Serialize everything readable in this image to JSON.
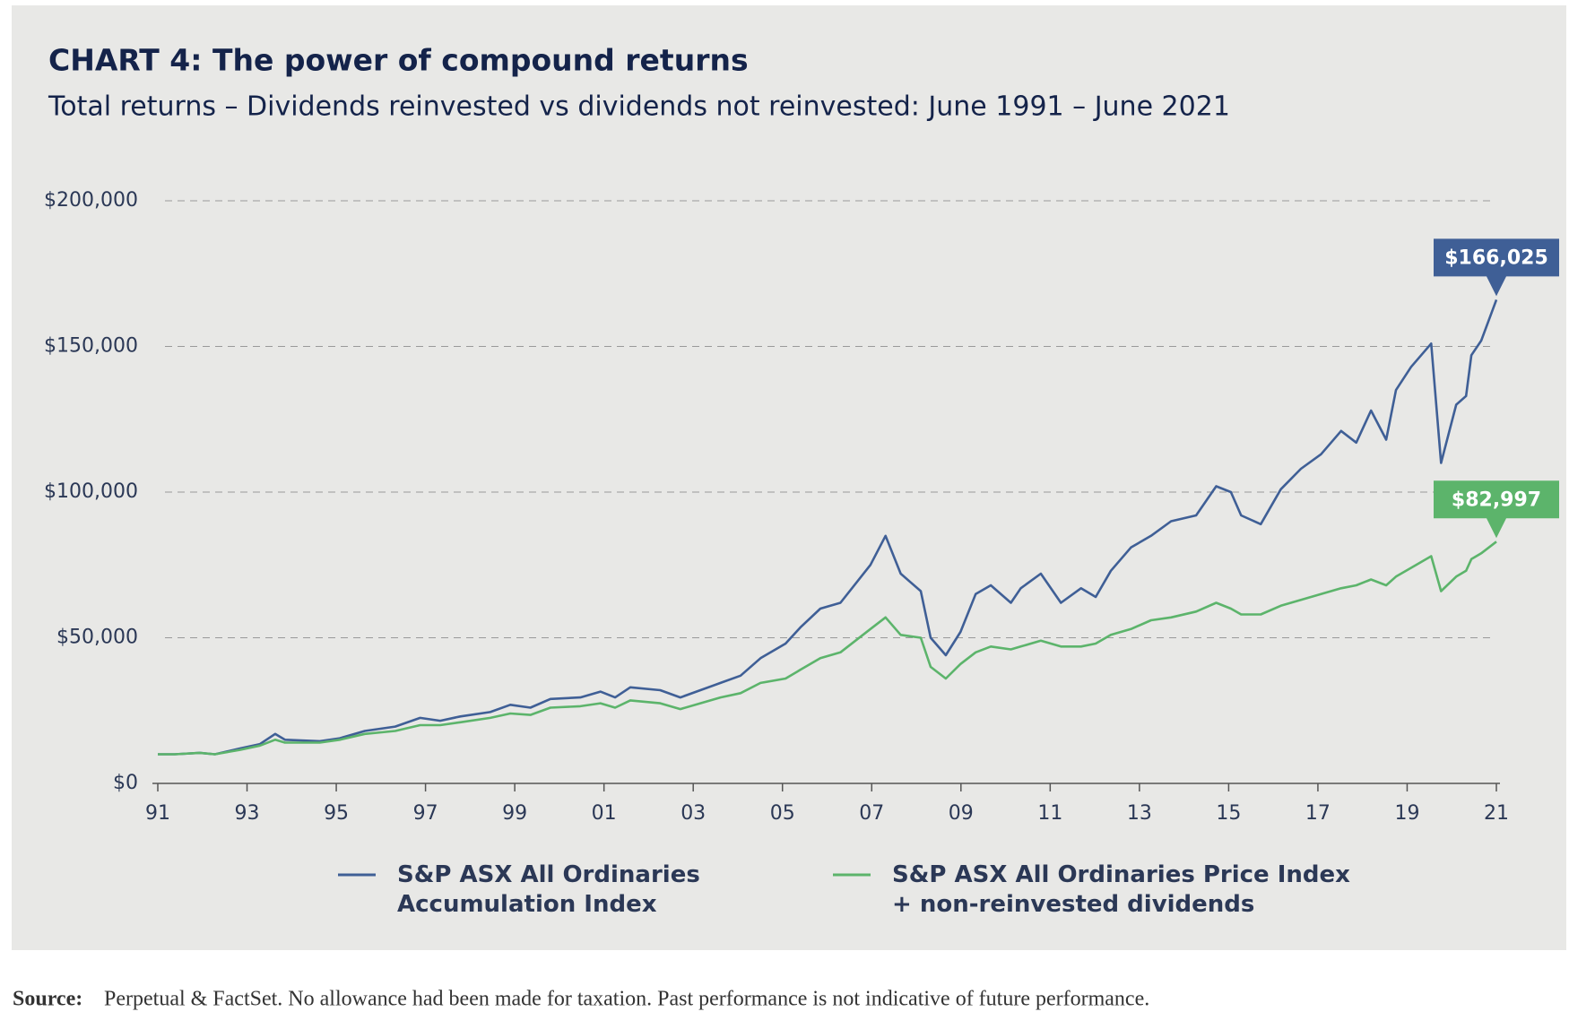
{
  "chart_data": {
    "type": "line",
    "title": "CHART 4:  The power of compound returns",
    "subtitle": "Total returns – Dividends reinvested vs dividends not reinvested: June 1991 – June 2021",
    "x": [
      1991.0,
      1991.38,
      1991.94,
      1992.28,
      1992.84,
      1993.29,
      1993.63,
      1993.85,
      1994.63,
      1995.08,
      1995.64,
      1996.32,
      1996.88,
      1997.33,
      1997.78,
      1998.45,
      1998.9,
      1999.35,
      1999.8,
      2000.47,
      2000.92,
      2001.25,
      2001.59,
      2002.26,
      2002.71,
      2003.16,
      2003.61,
      2004.06,
      2004.51,
      2005.07,
      2005.4,
      2005.85,
      2006.3,
      2006.97,
      2007.31,
      2007.65,
      2008.1,
      2008.32,
      2008.66,
      2008.99,
      2009.33,
      2009.67,
      2010.12,
      2010.34,
      2010.79,
      2011.24,
      2011.69,
      2012.02,
      2012.36,
      2012.81,
      2013.26,
      2013.71,
      2014.27,
      2014.72,
      2015.05,
      2015.28,
      2015.72,
      2016.17,
      2016.62,
      2017.07,
      2017.52,
      2017.86,
      2018.19,
      2018.53,
      2018.75,
      2019.09,
      2019.54,
      2019.76,
      2020.1,
      2020.32,
      2020.44,
      2020.66,
      2021.0
    ],
    "series": [
      {
        "name": "S&P ASX All Ordinaries\nAccumulation Index",
        "color": "#3f5f96",
        "values": [
          10000,
          10000,
          10500,
          10000,
          12000,
          13500,
          17000,
          15000,
          14500,
          15500,
          18000,
          19500,
          22500,
          21500,
          23000,
          24500,
          27000,
          26000,
          29000,
          29500,
          31500,
          29500,
          33000,
          32000,
          29500,
          32000,
          34500,
          37000,
          43000,
          48000,
          53500,
          60000,
          62000,
          75000,
          85000,
          72000,
          66000,
          50000,
          44000,
          52000,
          65000,
          68000,
          62000,
          67000,
          72000,
          62000,
          67000,
          64000,
          73000,
          81000,
          85000,
          90000,
          92000,
          102000,
          100000,
          92000,
          89000,
          101000,
          108000,
          113000,
          121000,
          117000,
          128000,
          118000,
          135000,
          143000,
          151000,
          110000,
          130000,
          133000,
          147000,
          152000,
          166025
        ]
      },
      {
        "name": "S&P ASX All Ordinaries Price Index\n+ non-reinvested dividends",
        "color": "#5cb46b",
        "values": [
          10000,
          10000,
          10500,
          10000,
          11500,
          13000,
          15000,
          14000,
          14000,
          15000,
          17000,
          18000,
          20000,
          20000,
          21000,
          22500,
          24000,
          23500,
          26000,
          26500,
          27500,
          26000,
          28500,
          27500,
          25500,
          27500,
          29500,
          31000,
          34500,
          36000,
          39000,
          43000,
          45000,
          53000,
          57000,
          51000,
          50000,
          40000,
          36000,
          41000,
          45000,
          47000,
          46000,
          47000,
          49000,
          47000,
          47000,
          48000,
          51000,
          53000,
          56000,
          57000,
          59000,
          62000,
          60000,
          58000,
          58000,
          61000,
          63000,
          65000,
          67000,
          68000,
          70000,
          68000,
          71000,
          74000,
          78000,
          66000,
          71000,
          73000,
          77000,
          79000,
          82997
        ]
      }
    ],
    "annotations": [
      {
        "label": "$166,025",
        "x": 2021,
        "value": 166025,
        "color": "#3f5f96"
      },
      {
        "label": "$82,997",
        "x": 2021,
        "value": 82997,
        "color": "#5cb46b"
      }
    ],
    "xlim": [
      1991,
      2021
    ],
    "xticks": [
      {
        "value": 1991,
        "label": "91"
      },
      {
        "value": 1993,
        "label": "93"
      },
      {
        "value": 1995,
        "label": "95"
      },
      {
        "value": 1997,
        "label": "97"
      },
      {
        "value": 1999,
        "label": "99"
      },
      {
        "value": 2001,
        "label": "01"
      },
      {
        "value": 2003,
        "label": "03"
      },
      {
        "value": 2005,
        "label": "05"
      },
      {
        "value": 2007,
        "label": "07"
      },
      {
        "value": 2009,
        "label": "09"
      },
      {
        "value": 2011,
        "label": "11"
      },
      {
        "value": 2013,
        "label": "13"
      },
      {
        "value": 2015,
        "label": "15"
      },
      {
        "value": 2017,
        "label": "17"
      },
      {
        "value": 2019,
        "label": "19"
      },
      {
        "value": 2021,
        "label": "21"
      }
    ],
    "ylim": [
      0,
      200000
    ],
    "yticks": [
      {
        "value": 0,
        "label": "$0"
      },
      {
        "value": 50000,
        "label": "$50,000"
      },
      {
        "value": 100000,
        "label": "$100,000"
      },
      {
        "value": 150000,
        "label": "$150,000"
      },
      {
        "value": 200000,
        "label": "$200,000"
      }
    ],
    "grid": true,
    "source_label": "Source:",
    "source": "Perpetual & FactSet. No allowance had been made for taxation. Past performance is not indicative of future performance."
  }
}
